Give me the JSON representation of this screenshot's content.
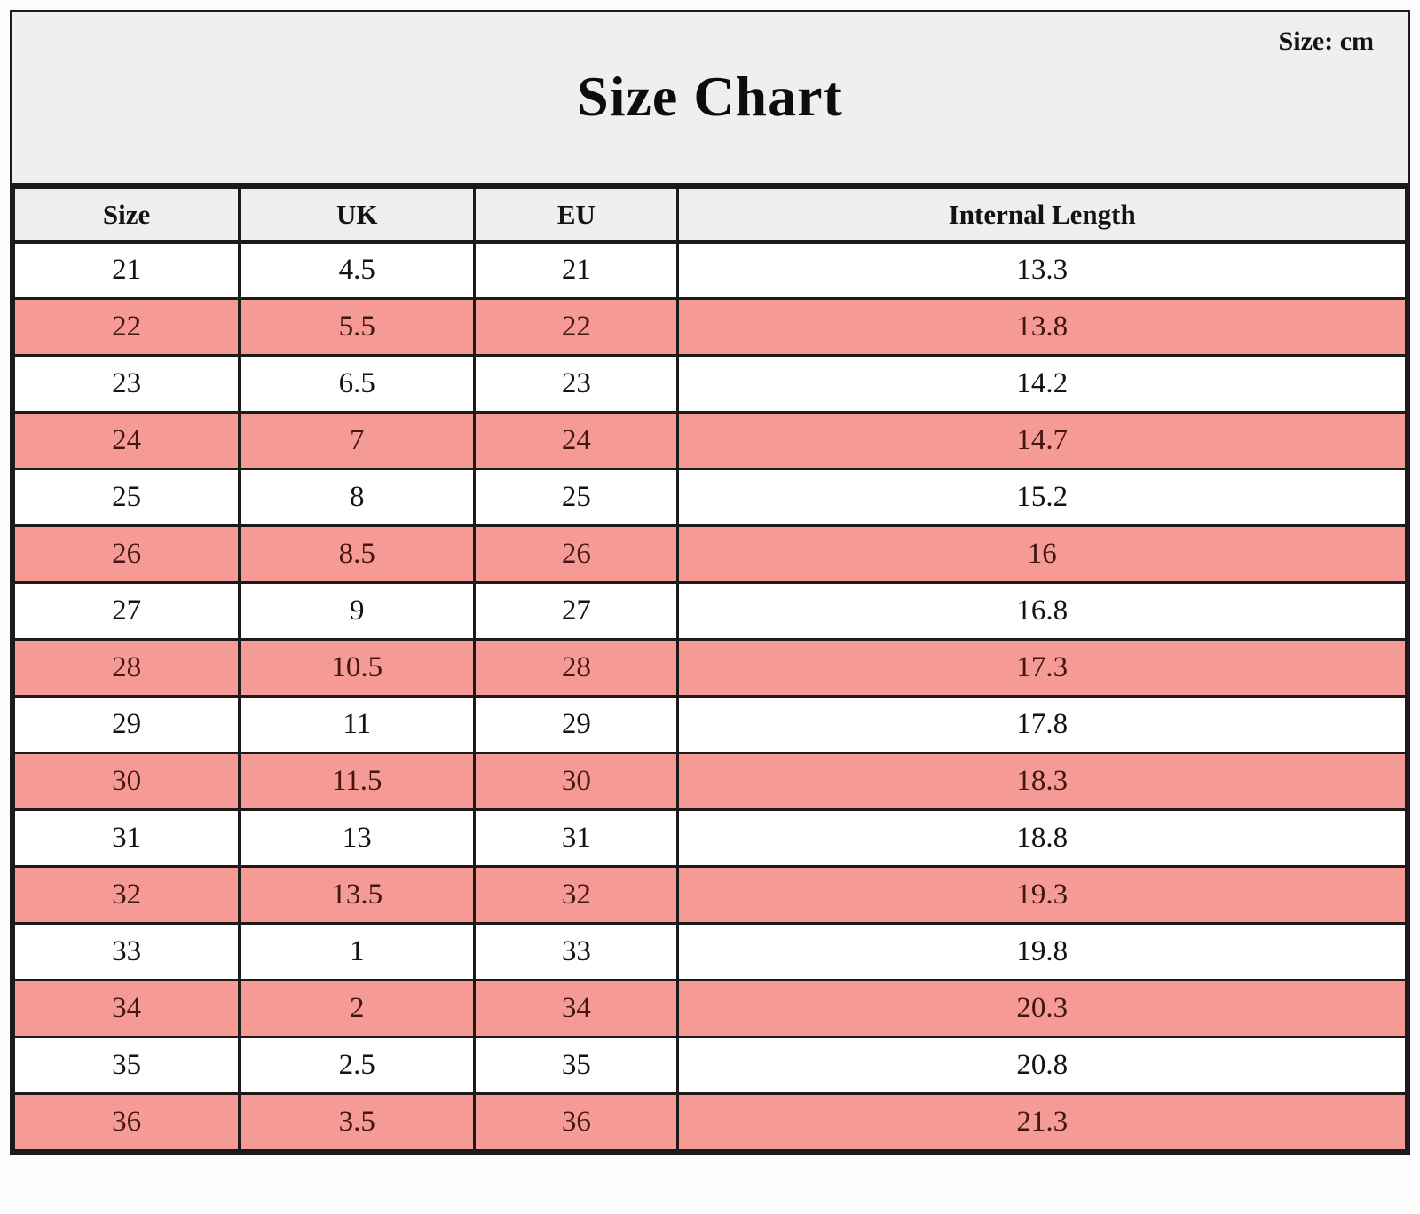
{
  "header": {
    "unit_note": "Size: cm",
    "title": "Size Chart"
  },
  "table": {
    "columns": [
      "Size",
      "UK",
      "EU",
      "Internal Length"
    ],
    "rows": [
      {
        "cells": [
          "21",
          "4.5",
          "21",
          "13.3"
        ],
        "highlighted": false
      },
      {
        "cells": [
          "22",
          "5.5",
          "22",
          "13.8"
        ],
        "highlighted": true
      },
      {
        "cells": [
          "23",
          "6.5",
          "23",
          "14.2"
        ],
        "highlighted": false
      },
      {
        "cells": [
          "24",
          "7",
          "24",
          "14.7"
        ],
        "highlighted": true
      },
      {
        "cells": [
          "25",
          "8",
          "25",
          "15.2"
        ],
        "highlighted": false
      },
      {
        "cells": [
          "26",
          "8.5",
          "26",
          "16"
        ],
        "highlighted": true
      },
      {
        "cells": [
          "27",
          "9",
          "27",
          "16.8"
        ],
        "highlighted": false
      },
      {
        "cells": [
          "28",
          "10.5",
          "28",
          "17.3"
        ],
        "highlighted": true
      },
      {
        "cells": [
          "29",
          "11",
          "29",
          "17.8"
        ],
        "highlighted": false
      },
      {
        "cells": [
          "30",
          "11.5",
          "30",
          "18.3"
        ],
        "highlighted": true
      },
      {
        "cells": [
          "31",
          "13",
          "31",
          "18.8"
        ],
        "highlighted": false
      },
      {
        "cells": [
          "32",
          "13.5",
          "32",
          "19.3"
        ],
        "highlighted": true
      },
      {
        "cells": [
          "33",
          "1",
          "33",
          "19.8"
        ],
        "highlighted": false
      },
      {
        "cells": [
          "34",
          "2",
          "34",
          "20.3"
        ],
        "highlighted": true
      },
      {
        "cells": [
          "35",
          "2.5",
          "35",
          "20.8"
        ],
        "highlighted": false
      },
      {
        "cells": [
          "36",
          "3.5",
          "36",
          "21.3"
        ],
        "highlighted": true
      }
    ]
  },
  "colors": {
    "band-bg": "#f0efed",
    "row-highlight": "#f59a95",
    "text": "#131313",
    "text-highlight": "#431612",
    "border": "#1b1b1b",
    "page-bg": "#fdfdfd"
  }
}
